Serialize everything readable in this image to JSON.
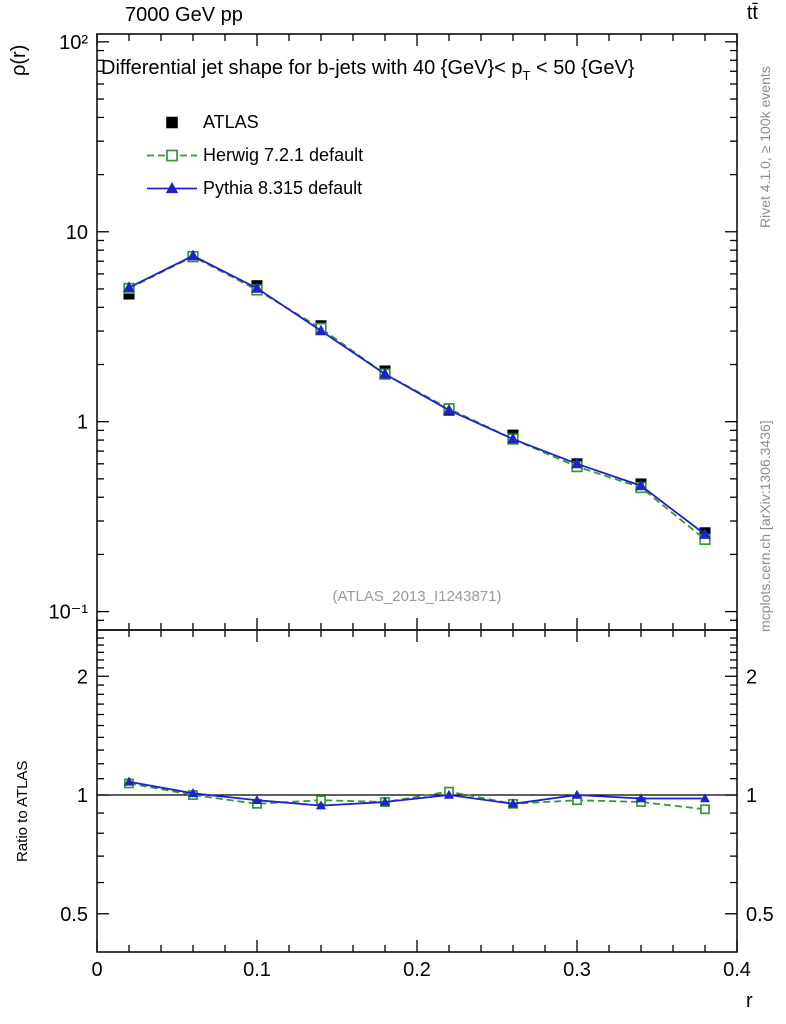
{
  "header": {
    "top_left": "7000 GeV pp",
    "top_right": "tt̄"
  },
  "title": {
    "pre": "Differential jet shape for b-jets with 40 {GeV}< p",
    "sub": "T",
    "post": " < 50 {GeV}"
  },
  "watermark": "(ATLAS_2013_I1243871)",
  "side_labels": {
    "rivet": "Rivet 4.1.0, ≥ 100k events",
    "mcplots": "mcplots.cern.ch [arXiv:1306.3436]"
  },
  "chart_data": {
    "type": "line",
    "title": "Differential jet shape for b-jets with 40 {GeV}< p_T < 50 {GeV}",
    "xlabel": "r",
    "ylabel": "ρ(r)",
    "ratio_ylabel": "Ratio to ATLAS",
    "yscale": "log",
    "ratio_yscale": "log",
    "grid": false,
    "legend_position": "top-left",
    "xlim": [
      0,
      0.4
    ],
    "ylim": [
      0.08,
      110
    ],
    "ratio_ylim": [
      0.4,
      2.62
    ],
    "x_major_ticks": [
      0,
      0.1,
      0.2,
      0.3,
      0.4
    ],
    "x_tick_labels": [
      "0",
      "0.1",
      "0.2",
      "0.3",
      "0.4"
    ],
    "y_major_ticks": [
      100,
      10,
      1,
      0.1
    ],
    "y_tick_labels": [
      "10²",
      "10",
      "1",
      "10⁻¹"
    ],
    "ratio_ticks": [
      2,
      1,
      0.5
    ],
    "ratio_tick_labels": [
      "2",
      "1",
      "0.5"
    ],
    "x": [
      0.02,
      0.06,
      0.1,
      0.14,
      0.18,
      0.22,
      0.26,
      0.3,
      0.34,
      0.38
    ],
    "series": [
      {
        "name": "ATLAS",
        "color": "#000000",
        "marker": "filled-square",
        "line": "none",
        "values": [
          4.7,
          7.4,
          5.2,
          3.2,
          1.85,
          1.15,
          0.85,
          0.6,
          0.47,
          0.26
        ],
        "yerr_rel": 0.06
      },
      {
        "name": "Herwig 7.2.1 default",
        "color": "#339933",
        "marker": "open-square",
        "line": "dashed",
        "values": [
          5.03,
          7.4,
          4.94,
          3.1,
          1.78,
          1.17,
          0.81,
          0.58,
          0.45,
          0.24
        ],
        "ratio": [
          1.07,
          1.0,
          0.95,
          0.97,
          0.96,
          1.02,
          0.95,
          0.97,
          0.96,
          0.92
        ],
        "yerr_rel": 0.02
      },
      {
        "name": "Pythia 8.315 default",
        "color": "#2020cc",
        "marker": "filled-triangle",
        "line": "solid",
        "values": [
          5.08,
          7.47,
          5.04,
          3.01,
          1.78,
          1.15,
          0.81,
          0.6,
          0.46,
          0.255
        ],
        "ratio": [
          1.08,
          1.01,
          0.97,
          0.94,
          0.96,
          1.0,
          0.95,
          1.0,
          0.98,
          0.98
        ],
        "yerr_rel": 0.02
      }
    ]
  }
}
